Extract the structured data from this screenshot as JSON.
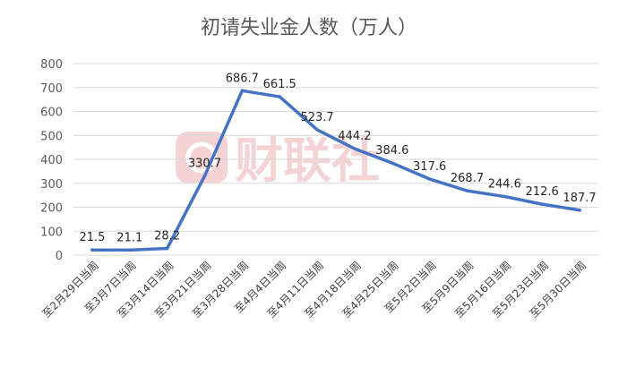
{
  "chart_data": {
    "type": "line",
    "title": "初请失业金人数（万人）",
    "xlabel": "",
    "ylabel": "",
    "ylim": [
      0,
      800
    ],
    "yticks": [
      0,
      100,
      200,
      300,
      400,
      500,
      600,
      700,
      800
    ],
    "grid": true,
    "legend": "none",
    "categories": [
      "至2月29日当周",
      "至3月7日当周",
      "至3月14日当周",
      "至3月21日当周",
      "至3月28日当周",
      "至4月4日当周",
      "至4月11日当周",
      "至4月18日当周",
      "至4月25日当周",
      "至5月2日当周",
      "至5月9日当周",
      "至5月16日当周",
      "至5月23日当周",
      "至5月30日当周"
    ],
    "series": [
      {
        "values": [
          21.5,
          21.1,
          28.2,
          330.7,
          686.7,
          661.5,
          523.7,
          444.2,
          384.6,
          317.6,
          268.7,
          244.6,
          212.6,
          187.7
        ],
        "labels": [
          "21.5",
          "21.1",
          "28.2",
          "330.7",
          "686.7",
          "661.5",
          "523.7",
          "444.2",
          "384.6",
          "317.6",
          "268.7",
          "244.6",
          "212.6",
          "187.7"
        ],
        "color": "#4472C4"
      }
    ],
    "gridline_color": "#d9d9d9"
  },
  "watermark": {
    "text": "财联社",
    "color": "#f3d3d3"
  }
}
